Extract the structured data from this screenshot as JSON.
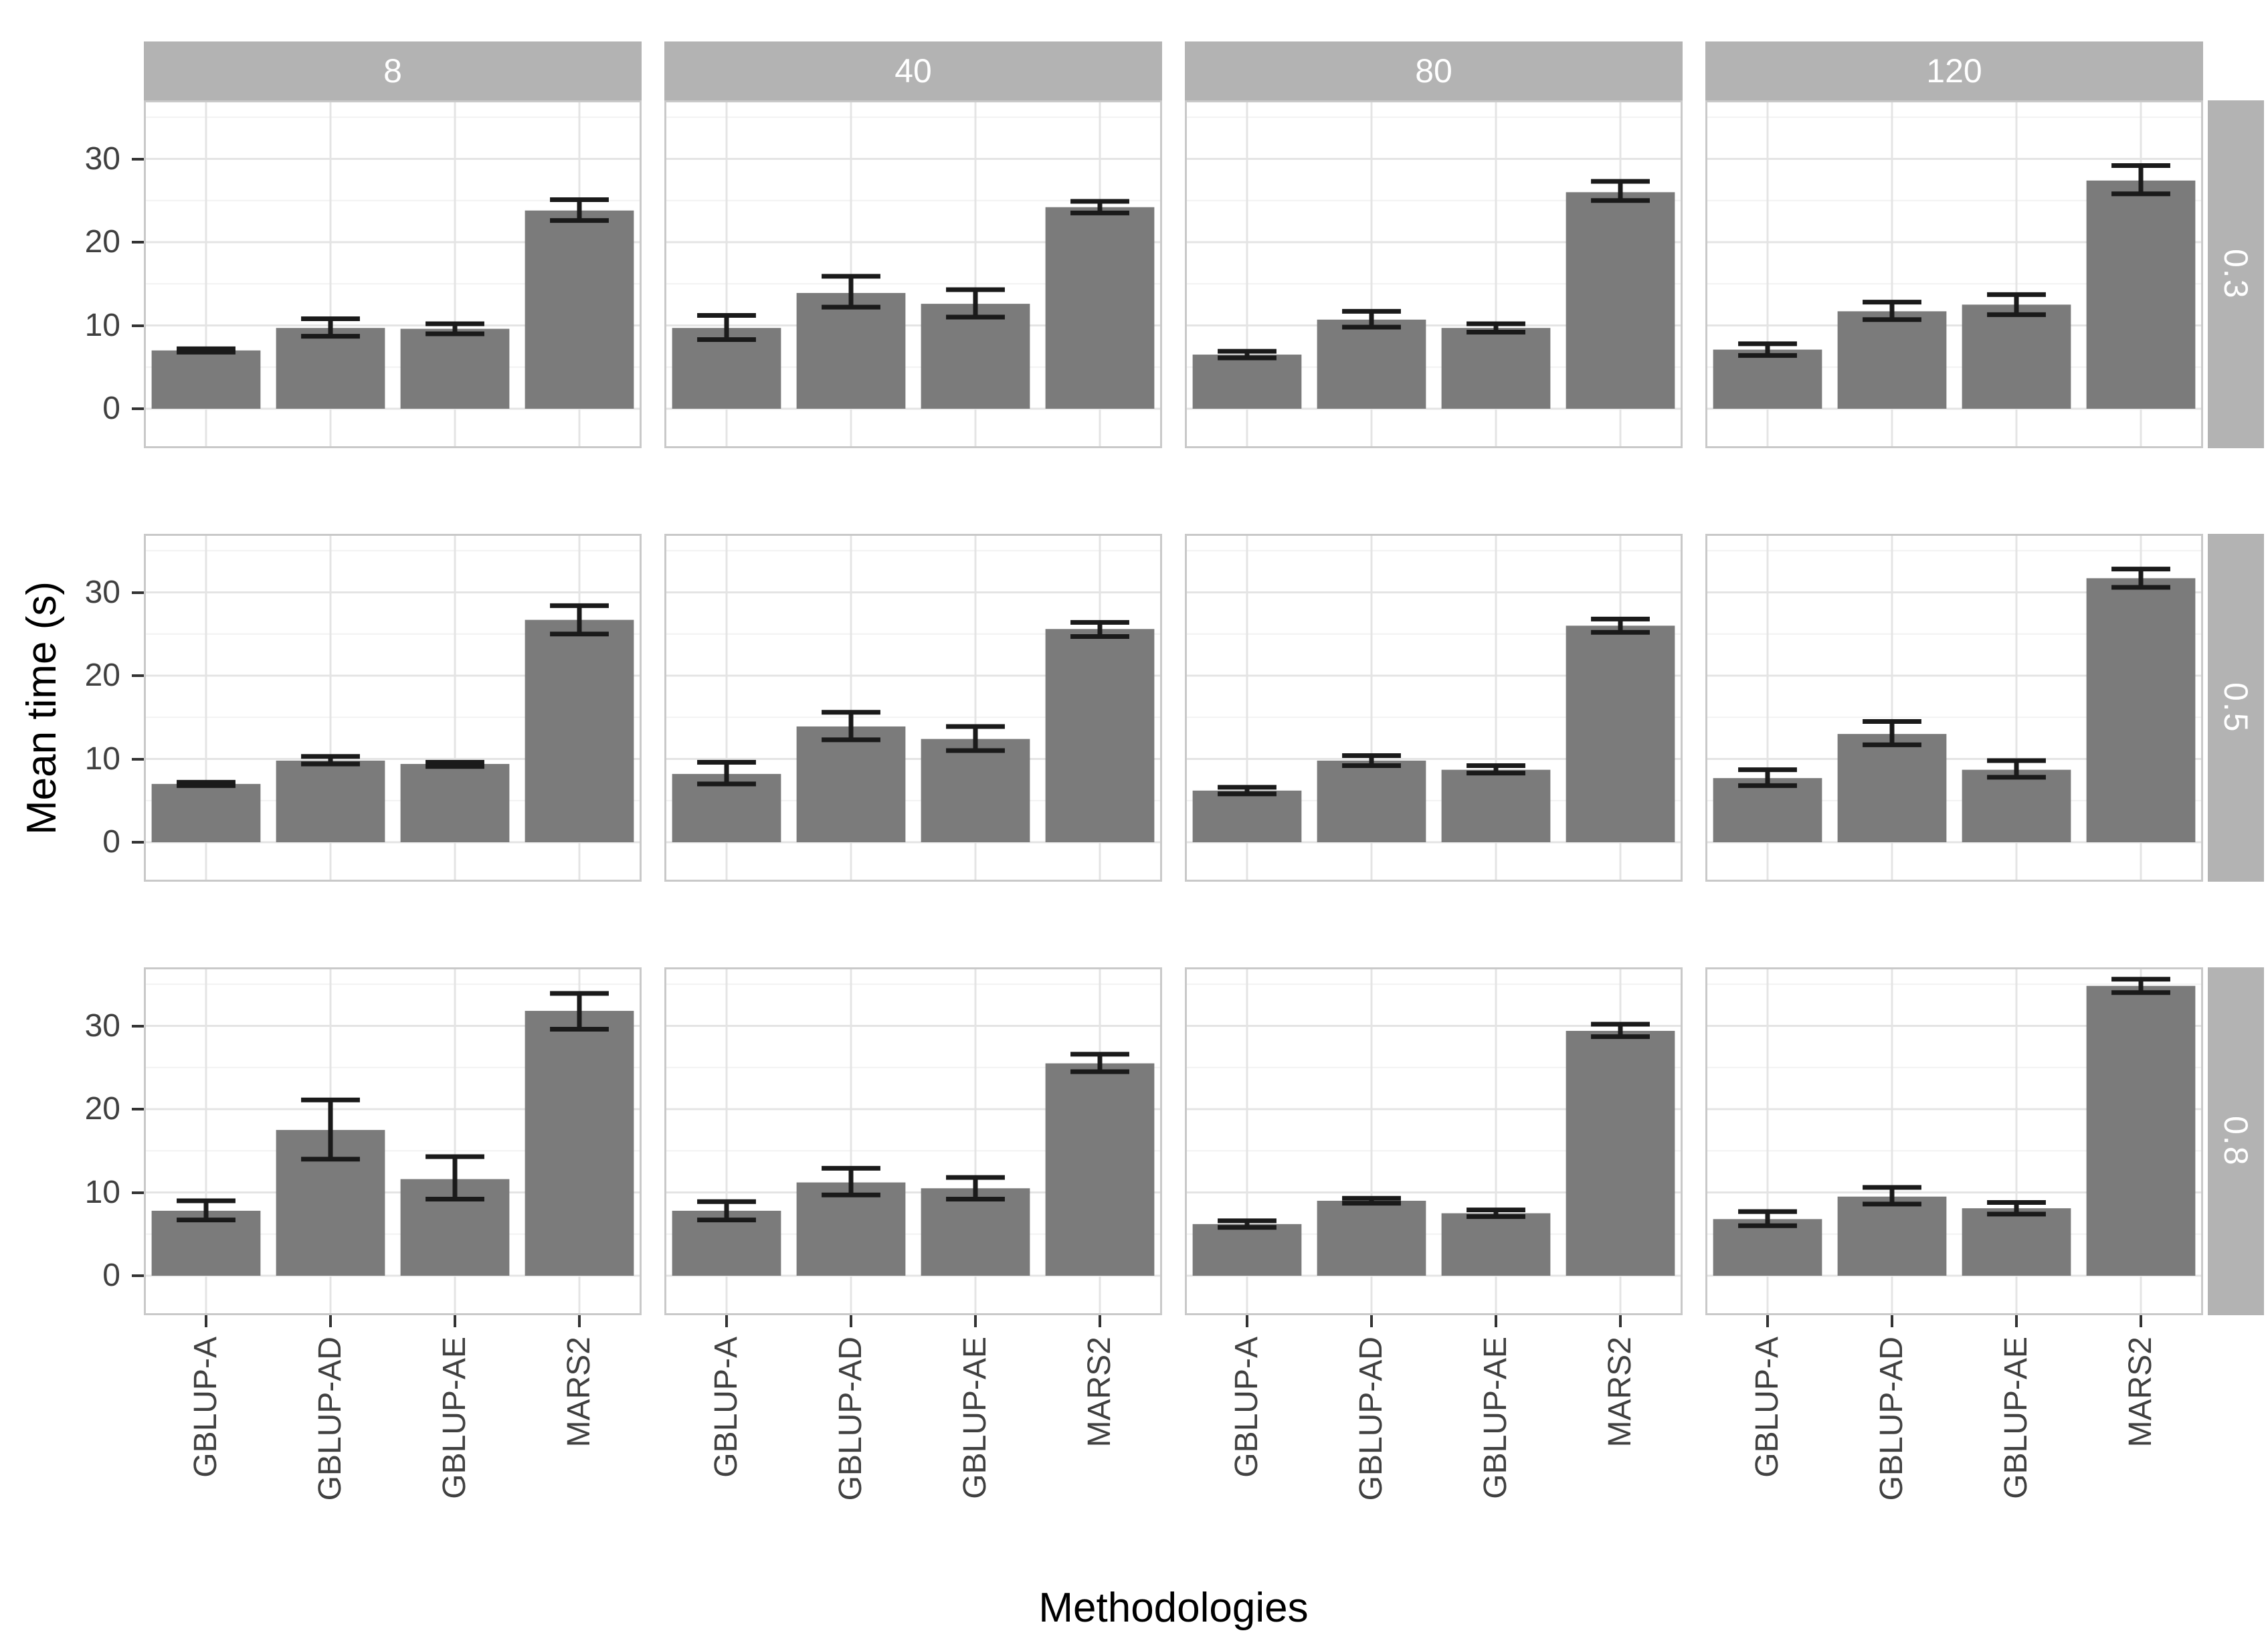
{
  "chart_data": {
    "type": "bar",
    "title": "",
    "xlabel": "Methodologies",
    "ylabel": "Mean time (s)",
    "categories": [
      "GBLUP-A",
      "GBLUP-AD",
      "GBLUP-AE",
      "MARS2"
    ],
    "col_facets": [
      "8",
      "40",
      "80",
      "120"
    ],
    "row_facets": [
      "0.3",
      "0.5",
      "0.8"
    ],
    "y_ticks": [
      0,
      10,
      20,
      30
    ],
    "ylim": [
      0,
      35
    ],
    "grid": "major and minor horizontal gridlines, vertical gridlines at category centers",
    "legend": "none",
    "error_bars": true,
    "panels": [
      {
        "row": "0.3",
        "col": "8",
        "values": [
          7.0,
          9.7,
          9.6,
          23.8
        ],
        "err_low": [
          6.8,
          8.7,
          9.0,
          22.6
        ],
        "err_high": [
          7.2,
          10.8,
          10.2,
          25.1
        ]
      },
      {
        "row": "0.3",
        "col": "40",
        "values": [
          9.7,
          13.9,
          12.6,
          24.2
        ],
        "err_low": [
          8.3,
          12.2,
          11.0,
          23.5
        ],
        "err_high": [
          11.2,
          15.9,
          14.3,
          24.9
        ]
      },
      {
        "row": "0.3",
        "col": "80",
        "values": [
          6.5,
          10.7,
          9.7,
          26.0
        ],
        "err_low": [
          6.1,
          9.8,
          9.2,
          25.0
        ],
        "err_high": [
          6.9,
          11.7,
          10.2,
          27.3
        ]
      },
      {
        "row": "0.3",
        "col": "120",
        "values": [
          7.1,
          11.7,
          12.5,
          27.4
        ],
        "err_low": [
          6.4,
          10.7,
          11.3,
          25.8
        ],
        "err_high": [
          7.8,
          12.8,
          13.7,
          29.2
        ]
      },
      {
        "row": "0.5",
        "col": "8",
        "values": [
          7.0,
          9.8,
          9.4,
          26.7
        ],
        "err_low": [
          6.8,
          9.4,
          9.1,
          25.0
        ],
        "err_high": [
          7.2,
          10.3,
          9.6,
          28.4
        ]
      },
      {
        "row": "0.5",
        "col": "40",
        "values": [
          8.2,
          13.9,
          12.4,
          25.6
        ],
        "err_low": [
          7.0,
          12.3,
          11.0,
          24.7
        ],
        "err_high": [
          9.6,
          15.6,
          13.9,
          26.4
        ]
      },
      {
        "row": "0.5",
        "col": "80",
        "values": [
          6.2,
          9.8,
          8.7,
          26.0
        ],
        "err_low": [
          5.8,
          9.2,
          8.3,
          25.2
        ],
        "err_high": [
          6.6,
          10.4,
          9.2,
          26.8
        ]
      },
      {
        "row": "0.5",
        "col": "120",
        "values": [
          7.7,
          13.0,
          8.7,
          31.7
        ],
        "err_low": [
          6.8,
          11.7,
          7.8,
          30.6
        ],
        "err_high": [
          8.7,
          14.5,
          9.8,
          32.8
        ]
      },
      {
        "row": "0.8",
        "col": "8",
        "values": [
          7.8,
          17.5,
          11.6,
          31.8
        ],
        "err_low": [
          6.7,
          14.0,
          9.2,
          29.6
        ],
        "err_high": [
          9.0,
          21.1,
          14.3,
          33.9
        ]
      },
      {
        "row": "0.8",
        "col": "40",
        "values": [
          7.8,
          11.2,
          10.5,
          25.5
        ],
        "err_low": [
          6.7,
          9.7,
          9.2,
          24.5
        ],
        "err_high": [
          8.9,
          12.9,
          11.8,
          26.6
        ]
      },
      {
        "row": "0.8",
        "col": "80",
        "values": [
          6.2,
          9.0,
          7.5,
          29.4
        ],
        "err_low": [
          5.8,
          8.7,
          7.1,
          28.7
        ],
        "err_high": [
          6.6,
          9.3,
          7.9,
          30.2
        ]
      },
      {
        "row": "0.8",
        "col": "120",
        "values": [
          6.8,
          9.5,
          8.1,
          34.8
        ],
        "err_low": [
          6.0,
          8.6,
          7.4,
          34.0
        ],
        "err_high": [
          7.7,
          10.6,
          8.8,
          35.6
        ]
      }
    ],
    "colors": {
      "bar_fill": "#7b7b7b",
      "error_bar": "#1a1a1a",
      "strip_bg": "#b3b3b3",
      "strip_text": "#ffffff",
      "grid_major": "#e4e4e4",
      "grid_minor": "#f2f2f2",
      "panel_border": "#c9c9c9",
      "panel_bg": "#ffffff",
      "tick_text": "#404040",
      "axis_title_text": "#000000"
    }
  }
}
